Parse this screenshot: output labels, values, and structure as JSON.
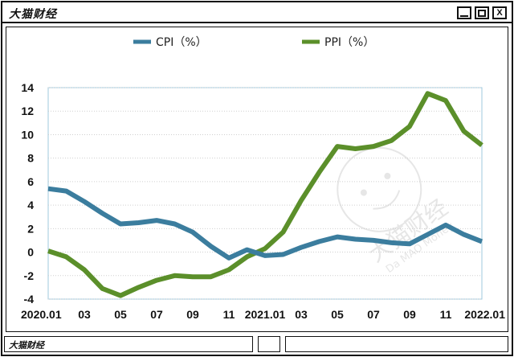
{
  "window": {
    "title": "大猫财经",
    "status_label": "大猫财经"
  },
  "watermark": {
    "brand": "大猫财经",
    "sub": "Da MAO Money"
  },
  "chart_data": {
    "type": "line",
    "x": [
      "2020.01",
      "2020.02",
      "2020.03",
      "2020.04",
      "2020.05",
      "2020.06",
      "2020.07",
      "2020.08",
      "2020.09",
      "2020.10",
      "2020.11",
      "2020.12",
      "2021.01",
      "2021.02",
      "2021.03",
      "2021.04",
      "2021.05",
      "2021.06",
      "2021.07",
      "2021.08",
      "2021.09",
      "2021.10",
      "2021.11",
      "2021.12",
      "2022.01"
    ],
    "x_tick_labels": [
      {
        "index": 0,
        "label": "2020.01"
      },
      {
        "index": 2,
        "label": "03"
      },
      {
        "index": 4,
        "label": "05"
      },
      {
        "index": 6,
        "label": "07"
      },
      {
        "index": 8,
        "label": "09"
      },
      {
        "index": 10,
        "label": "11"
      },
      {
        "index": 12,
        "label": "2021.01"
      },
      {
        "index": 14,
        "label": "03"
      },
      {
        "index": 16,
        "label": "05"
      },
      {
        "index": 18,
        "label": "07"
      },
      {
        "index": 20,
        "label": "09"
      },
      {
        "index": 22,
        "label": "11"
      },
      {
        "index": 24,
        "label": "2022.01"
      }
    ],
    "y_ticks": [
      -4,
      -2,
      0,
      2,
      4,
      6,
      8,
      10,
      12,
      14
    ],
    "ylim": [
      -4,
      14
    ],
    "grid": true,
    "legend_position": "top",
    "series": [
      {
        "name": "CPI（%）",
        "color": "#3b7d9e",
        "values": [
          5.4,
          5.2,
          4.3,
          3.3,
          2.4,
          2.5,
          2.7,
          2.4,
          1.7,
          0.5,
          -0.5,
          0.2,
          -0.3,
          -0.2,
          0.4,
          0.9,
          1.3,
          1.1,
          1.0,
          0.8,
          0.7,
          1.5,
          2.3,
          1.5,
          0.9
        ]
      },
      {
        "name": "PPI（%）",
        "color": "#5b8f2a",
        "values": [
          0.1,
          -0.4,
          -1.5,
          -3.1,
          -3.7,
          -3.0,
          -2.4,
          -2.0,
          -2.1,
          -2.1,
          -1.5,
          -0.4,
          0.3,
          1.7,
          4.4,
          6.8,
          9.0,
          8.8,
          9.0,
          9.5,
          10.7,
          13.5,
          12.9,
          10.3,
          9.1
        ]
      }
    ]
  }
}
